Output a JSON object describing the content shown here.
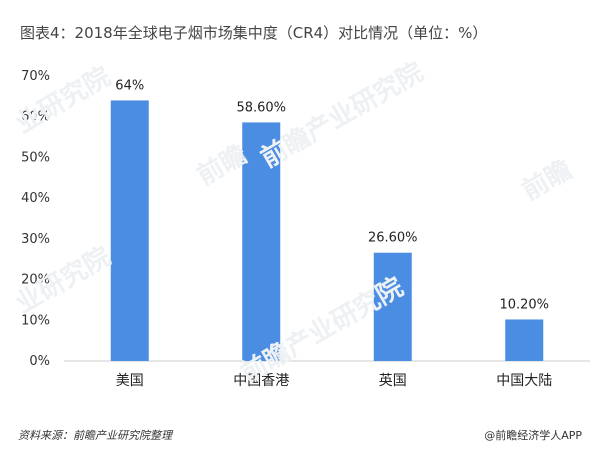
{
  "chart_data": {
    "type": "bar",
    "title": "图表4：2018年全球电子烟市场集中度（CR4）对比情况（单位：%）",
    "categories": [
      "美国",
      "中国香港",
      "英国",
      "中国大陆"
    ],
    "values": [
      64,
      58.6,
      26.6,
      10.2
    ],
    "data_labels": [
      "64%",
      "58.60%",
      "26.60%",
      "10.20%"
    ],
    "ylim": [
      0,
      70
    ],
    "yticks": [
      "0%",
      "10%",
      "20%",
      "30%",
      "40%",
      "50%",
      "60%",
      "70%"
    ],
    "grid": false,
    "bar_color": "#4a8de3"
  },
  "footer": {
    "source": "资料来源：前瞻产业研究院整理",
    "brand": "@前瞻经济学人APP"
  },
  "watermarks": [
    "业研究院",
    "前瞻产业研究院",
    "前瞻",
    "前瞻"
  ]
}
